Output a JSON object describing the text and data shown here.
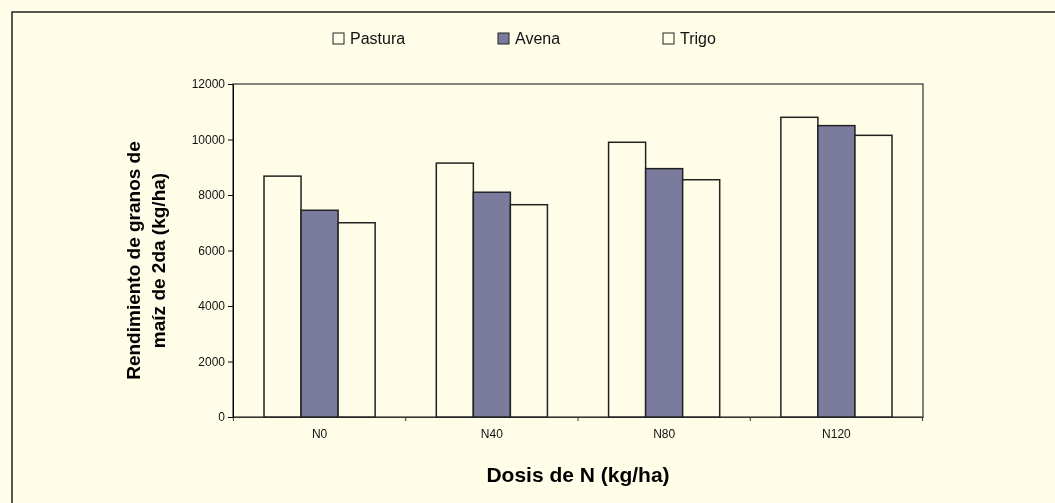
{
  "chart_data": {
    "type": "bar",
    "xlabel": "Dosis de N (kg/ha)",
    "ylabel": "Rendimiento de granos de maíz de 2da (kg/ha)",
    "categories": [
      "N0",
      "N40",
      "N80",
      "N120"
    ],
    "series": [
      {
        "name": "Pastura",
        "color": "#fffde8",
        "values": [
          8680,
          9150,
          9900,
          10800
        ]
      },
      {
        "name": "Avena",
        "color": "#7b7b9e",
        "values": [
          7450,
          8100,
          8950,
          10500
        ]
      },
      {
        "name": "Trigo",
        "color": "#fffde8",
        "values": [
          7000,
          7650,
          8550,
          10150
        ]
      }
    ],
    "ylim": [
      0,
      12000
    ],
    "yticks": [
      0,
      2000,
      4000,
      6000,
      8000,
      10000,
      12000
    ],
    "grid": false,
    "legend": "top"
  }
}
